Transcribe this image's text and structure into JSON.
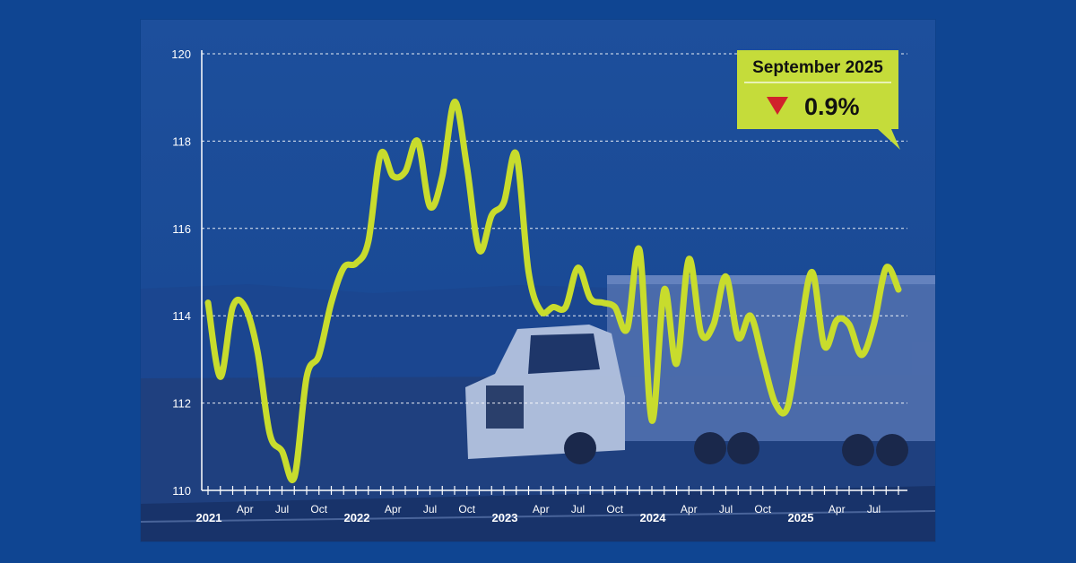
{
  "chart_data": {
    "type": "line",
    "title": "",
    "xlabel": "",
    "ylabel": "",
    "ylim": [
      110,
      120
    ],
    "yticks": [
      110,
      112,
      114,
      116,
      118,
      120
    ],
    "grid": true,
    "x_tick_labels": [
      {
        "label": "2021",
        "year": true
      },
      {
        "label": "Apr",
        "year": false
      },
      {
        "label": "Jul",
        "year": false
      },
      {
        "label": "Oct",
        "year": false
      },
      {
        "label": "2022",
        "year": true
      },
      {
        "label": "Apr",
        "year": false
      },
      {
        "label": "Jul",
        "year": false
      },
      {
        "label": "Oct",
        "year": false
      },
      {
        "label": "2023",
        "year": true
      },
      {
        "label": "Apr",
        "year": false
      },
      {
        "label": "Jul",
        "year": false
      },
      {
        "label": "Oct",
        "year": false
      },
      {
        "label": "2024",
        "year": true
      },
      {
        "label": "Apr",
        "year": false
      },
      {
        "label": "Jul",
        "year": false
      },
      {
        "label": "Oct",
        "year": false
      },
      {
        "label": "2025",
        "year": true
      },
      {
        "label": "Apr",
        "year": false
      },
      {
        "label": "Jul",
        "year": false
      }
    ],
    "series": [
      {
        "x": [
          "2021-01",
          "2021-02",
          "2021-03",
          "2021-04",
          "2021-05",
          "2021-06",
          "2021-07",
          "2021-08",
          "2021-09",
          "2021-10",
          "2021-11",
          "2021-12",
          "2022-01",
          "2022-02",
          "2022-03",
          "2022-04",
          "2022-05",
          "2022-06",
          "2022-07",
          "2022-08",
          "2022-09",
          "2022-10",
          "2022-11",
          "2022-12",
          "2023-01",
          "2023-02",
          "2023-03",
          "2023-04",
          "2023-05",
          "2023-06",
          "2023-07",
          "2023-08",
          "2023-09",
          "2023-10",
          "2023-11",
          "2023-12",
          "2024-01",
          "2024-02",
          "2024-03",
          "2024-04",
          "2024-05",
          "2024-06",
          "2024-07",
          "2024-08",
          "2024-09",
          "2024-10",
          "2024-11",
          "2024-12",
          "2025-01",
          "2025-02",
          "2025-03",
          "2025-04",
          "2025-05",
          "2025-06",
          "2025-07",
          "2025-08",
          "2025-09"
        ],
        "values": [
          114.3,
          112.6,
          114.2,
          114.2,
          113.2,
          111.3,
          110.9,
          110.3,
          112.6,
          113.1,
          114.3,
          115.1,
          115.2,
          115.7,
          117.7,
          117.2,
          117.3,
          118.0,
          116.5,
          117.2,
          118.9,
          117.4,
          115.5,
          116.3,
          116.6,
          117.7,
          115.0,
          114.1,
          114.2,
          114.2,
          115.1,
          114.4,
          114.3,
          114.2,
          113.7,
          115.5,
          111.6,
          114.6,
          112.9,
          115.3,
          113.6,
          113.8,
          114.9,
          113.5,
          114.0,
          113.0,
          112.0,
          111.9,
          113.6,
          115.0,
          113.3,
          113.9,
          113.8,
          113.1,
          113.8,
          115.1,
          114.6
        ],
        "color": "#c8dc2d"
      }
    ]
  },
  "callout": {
    "title": "September 2025",
    "value": "0.9%",
    "direction": "down",
    "background": "#c5dc3a",
    "arrow_color": "#d0222b"
  },
  "colors": {
    "page_background": "#0f4592",
    "card_background": "#1a4d9a",
    "line": "#c8dc2d",
    "axis": "#ffffff"
  }
}
